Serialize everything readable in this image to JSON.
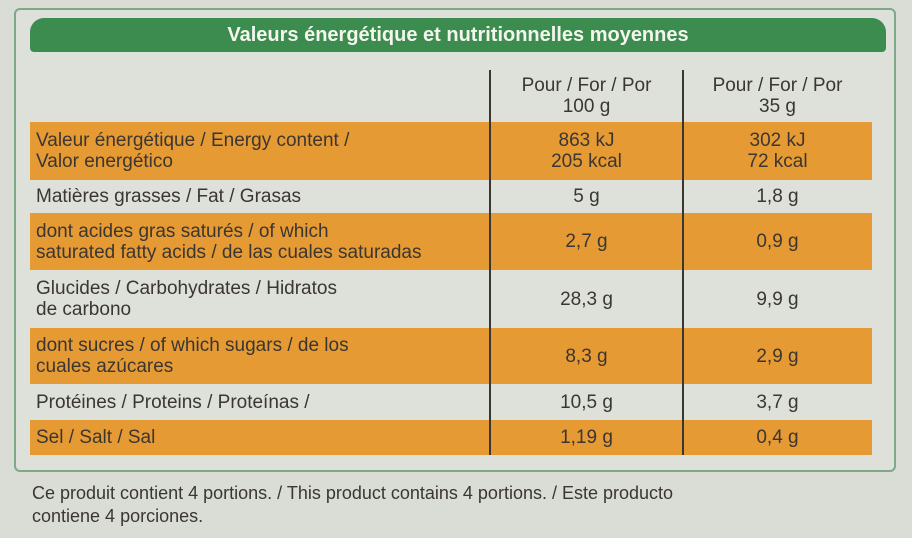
{
  "title": "Valeurs énergétique et nutritionnelles moyennes",
  "table": {
    "header": [
      [
        "Pour / For / Por",
        "100 g"
      ],
      [
        "Pour / For / Por",
        "35 g"
      ]
    ],
    "rows": [
      {
        "label": [
          "Valeur énergétique / Energy content /",
          "Valor energético"
        ],
        "per100": [
          "863 kJ",
          "205 kcal"
        ],
        "perPortion": [
          "302 kJ",
          "72 kcal"
        ]
      },
      {
        "label": [
          "Matières grasses / Fat / Grasas"
        ],
        "per100": [
          "5 g"
        ],
        "perPortion": [
          "1,8 g"
        ]
      },
      {
        "label": [
          "dont acides gras saturés / of which",
          "saturated fatty acids / de las cuales saturadas"
        ],
        "per100": [
          "2,7 g"
        ],
        "perPortion": [
          "0,9 g"
        ]
      },
      {
        "label": [
          "Glucides / Carbohydrates / Hidratos",
          "de carbono"
        ],
        "per100": [
          "28,3 g"
        ],
        "perPortion": [
          "9,9 g"
        ]
      },
      {
        "label": [
          "dont sucres / of which sugars / de los",
          "cuales azúcares"
        ],
        "per100": [
          "8,3 g"
        ],
        "perPortion": [
          "2,9 g"
        ]
      },
      {
        "label": [
          "Protéines / Proteins / Proteínas /"
        ],
        "per100": [
          "10,5 g"
        ],
        "perPortion": [
          "3,7 g"
        ]
      },
      {
        "label": [
          "Sel / Salt / Sal"
        ],
        "per100": [
          "1,19 g"
        ],
        "perPortion": [
          "0,4 g"
        ]
      }
    ]
  },
  "footer": [
    "Ce produit contient 4 portions. / This product contains 4 portions. / Este producto",
    "contiene 4 porciones."
  ]
}
